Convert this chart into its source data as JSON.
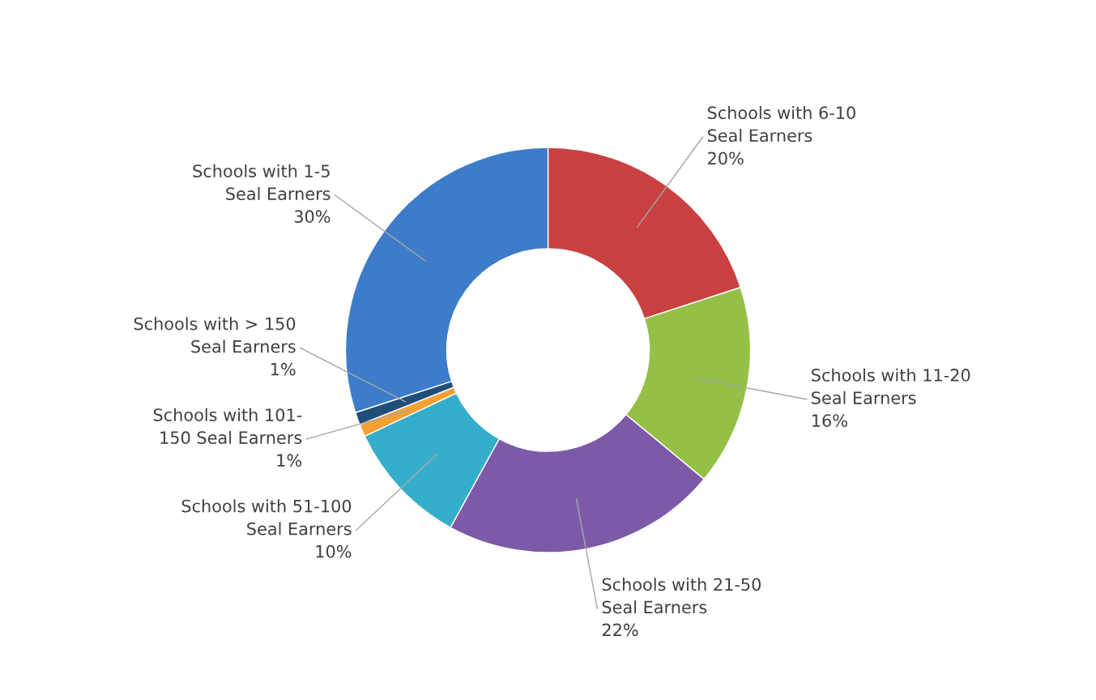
{
  "chart_data": {
    "type": "donut",
    "categories": [
      "Schools with 6-10\nSeal Earners",
      "Schools with 11-20\nSeal Earners",
      "Schools with 21-50\nSeal Earners",
      "Schools with 51-100\nSeal Earners",
      "Schools with 101-\n150 Seal Earners",
      "Schools with > 150\nSeal Earners",
      "Schools with 1-5\nSeal Earners"
    ],
    "values": [
      20,
      16,
      22,
      10,
      1,
      1,
      30
    ],
    "value_labels": [
      "20%",
      "16%",
      "22%",
      "10%",
      "1%",
      "1%",
      "30%"
    ],
    "colors": [
      "#c94040",
      "#94c047",
      "#7d5aa8",
      "#35aecb",
      "#f5a033",
      "#1f4e79",
      "#3d7cc9"
    ]
  }
}
